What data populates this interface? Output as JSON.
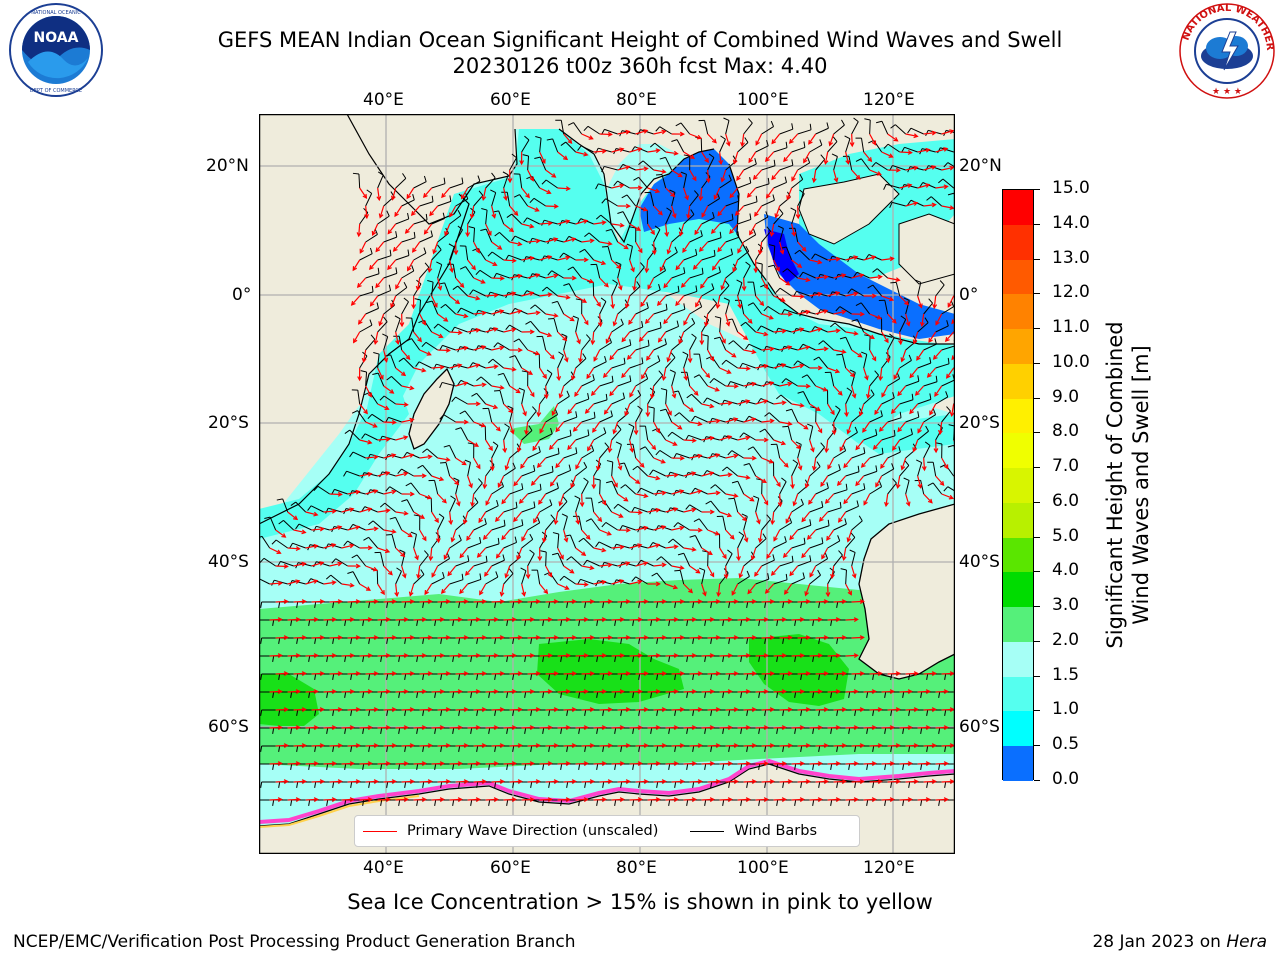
{
  "header": {
    "title_line1": "GEFS MEAN Indian Ocean Significant Height of Combined Wind Waves and Swell",
    "title_line2": "20230126 t00z 360h fcst   Max: 4.40"
  },
  "logos": {
    "left": {
      "text": "NOAA",
      "ring_text": "NATIONAL OCEANIC AND ATMOSPHERIC ADMINISTRATION · U.S. DEPARTMENT OF COMMERCE"
    },
    "right": {
      "ring_text": "NATIONAL WEATHER SERVICE"
    }
  },
  "map": {
    "lon_labels": [
      "40°E",
      "60°E",
      "80°E",
      "100°E",
      "120°E"
    ],
    "lat_labels": [
      "20°N",
      "0°",
      "20°S",
      "40°S",
      "60°S"
    ],
    "colors": {
      "land": "#efecdc",
      "ocean_low": "#a6fff6",
      "ocean_mid": "#55ffef",
      "swell_band": "#55f07a",
      "swell_core": "#18e018",
      "bay": "#0a6fff",
      "deep": "#0000ff",
      "grid": "#b0b0b0",
      "arrow": "#ff0000"
    }
  },
  "legend": {
    "primary_wave": "Primary Wave Direction (unscaled)",
    "wind_barbs": "Wind Barbs"
  },
  "colorbar": {
    "label_line1": "Significant Height of Combined",
    "label_line2": "Wind Waves and Swell [m]",
    "ticks": [
      "15.0",
      "14.0",
      "13.0",
      "12.0",
      "11.0",
      "10.0",
      "9.0",
      "8.0",
      "7.0",
      "6.0",
      "5.0",
      "4.0",
      "3.0",
      "2.0",
      "1.5",
      "1.0",
      "0.5",
      "0.0"
    ],
    "colors": [
      "#ff0000",
      "#ff3000",
      "#ff5a00",
      "#ff8200",
      "#ffa500",
      "#ffd000",
      "#fff000",
      "#f0ff00",
      "#d8f500",
      "#b8f000",
      "#5ae600",
      "#00dc00",
      "#55f07a",
      "#a6fff6",
      "#55ffef",
      "#00ffff",
      "#0a6fff",
      "#0000ff"
    ]
  },
  "footer": {
    "ice_note": "Sea Ice Concentration > 15% is shown in pink to yellow",
    "branch": "NCEP/EMC/Verification Post Processing Product Generation Branch",
    "date": "28 Jan 2023 on",
    "host": "Hera"
  }
}
